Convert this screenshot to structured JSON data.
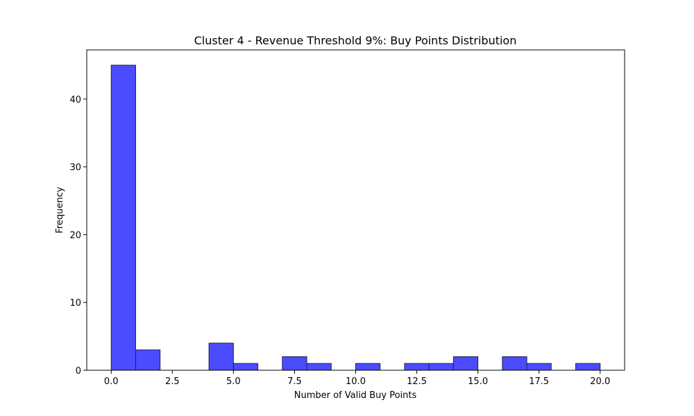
{
  "chart_data": {
    "type": "bar",
    "title": "Cluster 4 - Revenue Threshold 9%: Buy Points Distribution",
    "xlabel": "Number of Valid Buy Points",
    "ylabel": "Frequency",
    "bin_edges": [
      0,
      1,
      2,
      3,
      4,
      5,
      6,
      7,
      8,
      9,
      10,
      11,
      12,
      13,
      14,
      15,
      16,
      17,
      18,
      19,
      20
    ],
    "values": [
      45,
      3,
      0,
      0,
      4,
      1,
      0,
      2,
      1,
      0,
      1,
      0,
      1,
      1,
      2,
      0,
      2,
      1,
      0,
      1
    ],
    "xlim": [
      -1,
      21
    ],
    "ylim": [
      0,
      47.25
    ],
    "x_ticks": [
      0,
      2.5,
      5,
      7.5,
      10,
      12.5,
      15,
      17.5,
      20
    ],
    "x_tick_labels": [
      "0.0",
      "2.5",
      "5.0",
      "7.5",
      "10.0",
      "12.5",
      "15.0",
      "17.5",
      "20.0"
    ],
    "y_ticks": [
      0,
      10,
      20,
      30,
      40
    ],
    "y_tick_labels": [
      "0",
      "10",
      "20",
      "30",
      "40"
    ],
    "bar_color": "#4b4bff",
    "bar_edge_color": "#22224a",
    "grid": false,
    "legend": "none"
  }
}
